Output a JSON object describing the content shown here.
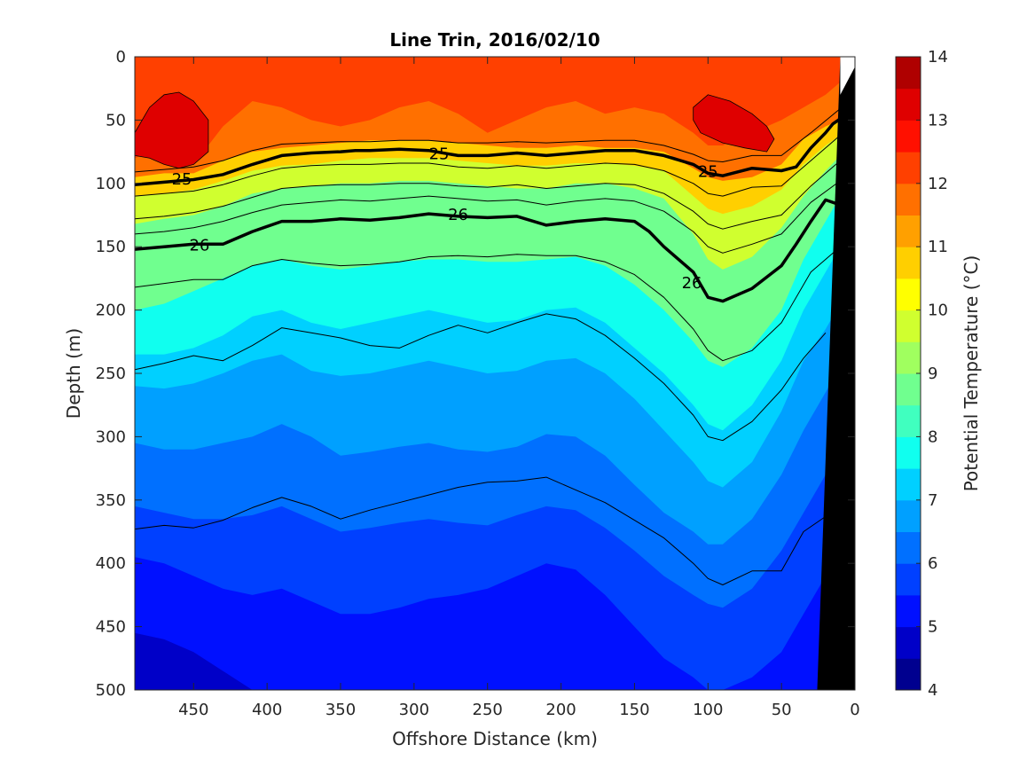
{
  "chart_data": {
    "type": "heatmap",
    "subtype": "filled-contour-section",
    "title": "Line Trin, 2016/02/10",
    "xlabel": "Offshore Distance (km)",
    "ylabel": "Depth (m)",
    "xlim": [
      490,
      0
    ],
    "x_reversed": true,
    "ylim": [
      0,
      500
    ],
    "y_reversed": true,
    "x_ticks": [
      "450",
      "400",
      "350",
      "300",
      "250",
      "200",
      "150",
      "100",
      "50",
      "0"
    ],
    "x_tick_values": [
      450,
      400,
      350,
      300,
      250,
      200,
      150,
      100,
      50,
      0
    ],
    "y_ticks": [
      "0",
      "50",
      "100",
      "150",
      "200",
      "250",
      "300",
      "350",
      "400",
      "450",
      "500"
    ],
    "y_tick_values": [
      0,
      50,
      100,
      150,
      200,
      250,
      300,
      350,
      400,
      450,
      500
    ],
    "colorbar": {
      "label": "Potential Temperature (°C)",
      "range": [
        4,
        14
      ],
      "step": 0.5,
      "ticks": [
        "4",
        "5",
        "6",
        "7",
        "8",
        "9",
        "10",
        "11",
        "12",
        "13",
        "14"
      ],
      "tick_values": [
        4,
        5,
        6,
        7,
        8,
        9,
        10,
        11,
        12,
        13,
        14
      ],
      "colors": [
        "#00008f",
        "#0000c8",
        "#0010ff",
        "#0040ff",
        "#0070ff",
        "#00a0ff",
        "#00d0ff",
        "#10ffef",
        "#40ffbf",
        "#70ff8f",
        "#a0ff5f",
        "#d0ff2f",
        "#ffff00",
        "#ffcf00",
        "#ffa000",
        "#ff7000",
        "#ff4000",
        "#ff1000",
        "#df0000",
        "#af0000"
      ]
    },
    "x_grid": [
      490,
      470,
      450,
      430,
      410,
      390,
      370,
      350,
      330,
      310,
      290,
      270,
      250,
      230,
      210,
      190,
      170,
      150,
      130,
      110,
      100,
      90,
      70,
      50,
      35,
      20,
      10
    ],
    "isotherm_depths": [
      {
        "temp": 12.0,
        "depth": [
          80,
          72,
          85,
          55,
          35,
          40,
          50,
          55,
          50,
          40,
          35,
          45,
          60,
          50,
          40,
          35,
          45,
          40,
          45,
          60,
          70,
          70,
          60,
          50,
          40,
          30,
          20
        ]
      },
      {
        "temp": 11.0,
        "depth": [
          95,
          92,
          92,
          82,
          75,
          72,
          70,
          68,
          66,
          66,
          66,
          68,
          70,
          72,
          72,
          70,
          72,
          72,
          75,
          88,
          95,
          98,
          95,
          85,
          65,
          55,
          50
        ]
      },
      {
        "temp": 10.0,
        "depth": [
          110,
          108,
          105,
          98,
          90,
          86,
          85,
          82,
          80,
          80,
          80,
          82,
          84,
          86,
          86,
          84,
          84,
          86,
          90,
          110,
          120,
          124,
          118,
          105,
          85,
          70,
          62
        ]
      },
      {
        "temp": 9.0,
        "depth": [
          132,
          128,
          125,
          118,
          108,
          104,
          102,
          100,
          100,
          98,
          98,
          100,
          102,
          104,
          104,
          100,
          100,
          104,
          112,
          140,
          160,
          168,
          158,
          135,
          110,
          90,
          78
        ]
      },
      {
        "temp": 8.0,
        "depth": [
          200,
          195,
          185,
          175,
          165,
          160,
          165,
          168,
          165,
          162,
          160,
          160,
          162,
          162,
          160,
          158,
          165,
          180,
          200,
          225,
          240,
          245,
          230,
          200,
          160,
          130,
          110
        ]
      },
      {
        "temp": 7.5,
        "depth": [
          235,
          235,
          230,
          220,
          205,
          200,
          210,
          215,
          210,
          205,
          200,
          205,
          210,
          208,
          200,
          198,
          210,
          230,
          250,
          275,
          290,
          295,
          275,
          240,
          200,
          170,
          150
        ]
      },
      {
        "temp": 7.0,
        "depth": [
          260,
          262,
          258,
          250,
          240,
          235,
          248,
          252,
          250,
          245,
          240,
          245,
          250,
          248,
          240,
          238,
          250,
          270,
          295,
          320,
          335,
          340,
          320,
          280,
          240,
          215,
          195
        ]
      },
      {
        "temp": 6.5,
        "depth": [
          305,
          310,
          310,
          305,
          300,
          290,
          300,
          315,
          312,
          308,
          305,
          310,
          312,
          308,
          298,
          300,
          315,
          338,
          360,
          375,
          385,
          385,
          365,
          330,
          295,
          265,
          245
        ]
      },
      {
        "temp": 6.0,
        "depth": [
          355,
          360,
          365,
          365,
          362,
          355,
          365,
          375,
          372,
          368,
          365,
          368,
          370,
          362,
          355,
          358,
          372,
          390,
          410,
          425,
          432,
          435,
          420,
          390,
          360,
          330,
          310
        ]
      },
      {
        "temp": 5.5,
        "depth": [
          395,
          400,
          410,
          420,
          425,
          420,
          430,
          440,
          440,
          435,
          428,
          425,
          420,
          410,
          400,
          405,
          425,
          450,
          475,
          490,
          500,
          500,
          490,
          470,
          440,
          410,
          390
        ]
      },
      {
        "temp": 5.0,
        "depth": [
          455,
          460,
          470,
          485,
          500,
          510,
          510,
          510,
          510,
          510,
          510,
          510,
          510,
          510,
          510,
          510,
          510,
          510,
          510,
          510,
          510,
          510,
          510,
          510,
          510,
          510,
          510
        ]
      }
    ],
    "warm_cores_13C": [
      {
        "x": [
          490,
          480,
          470,
          460,
          450,
          440,
          440,
          450,
          460,
          470,
          480,
          490
        ],
        "depth": [
          60,
          40,
          30,
          28,
          35,
          50,
          75,
          85,
          88,
          85,
          80,
          78
        ]
      },
      {
        "x": [
          110,
          100,
          85,
          70,
          60,
          55,
          60,
          75,
          90,
          105,
          110
        ],
        "depth": [
          40,
          30,
          35,
          45,
          55,
          65,
          75,
          72,
          68,
          60,
          50
        ]
      }
    ],
    "sigma_contours": [
      {
        "label": "25",
        "bold": true,
        "x": [
          490,
          470,
          450,
          430,
          410,
          390,
          370,
          350,
          340,
          330,
          310,
          290,
          270,
          250,
          230,
          210,
          190,
          170,
          150,
          130,
          110,
          100,
          90,
          70,
          50,
          40,
          30,
          20,
          15,
          10
        ],
        "depth": [
          101,
          99,
          97,
          93,
          85,
          78,
          76,
          75,
          74,
          74,
          73,
          74,
          78,
          78,
          76,
          78,
          76,
          74,
          74,
          78,
          85,
          92,
          94,
          88,
          90,
          87,
          72,
          60,
          53,
          49
        ]
      },
      {
        "label": "26",
        "bold": true,
        "x": [
          490,
          470,
          450,
          430,
          410,
          390,
          370,
          350,
          330,
          310,
          290,
          270,
          250,
          230,
          210,
          190,
          170,
          150,
          140,
          130,
          110,
          100,
          90,
          70,
          50,
          40,
          30,
          20,
          10
        ],
        "depth": [
          152,
          150,
          148,
          148,
          138,
          130,
          130,
          128,
          129,
          127,
          124,
          126,
          127,
          126,
          133,
          130,
          128,
          130,
          138,
          150,
          170,
          190,
          193,
          183,
          165,
          148,
          130,
          113,
          117
        ]
      },
      {
        "label": "",
        "bold": false,
        "x": [
          490,
          470,
          450,
          430,
          410,
          390,
          370,
          350,
          330,
          310,
          290,
          270,
          250,
          230,
          210,
          190,
          170,
          150,
          130,
          110,
          100,
          90,
          70,
          50,
          30,
          10
        ],
        "depth": [
          91,
          89,
          87,
          82,
          74,
          69,
          68,
          67,
          67,
          66,
          66,
          68,
          68,
          67,
          68,
          67,
          66,
          66,
          70,
          77,
          82,
          83,
          78,
          78,
          60,
          41
        ]
      },
      {
        "label": "",
        "bold": false,
        "x": [
          490,
          470,
          450,
          430,
          410,
          390,
          370,
          350,
          330,
          310,
          290,
          270,
          250,
          230,
          210,
          190,
          170,
          150,
          130,
          110,
          100,
          90,
          70,
          50,
          30,
          10
        ],
        "depth": [
          110,
          108,
          106,
          101,
          94,
          88,
          86,
          85,
          85,
          84,
          84,
          87,
          88,
          86,
          88,
          86,
          84,
          85,
          90,
          100,
          108,
          110,
          103,
          102,
          82,
          62
        ]
      },
      {
        "label": "",
        "bold": false,
        "x": [
          490,
          470,
          450,
          430,
          410,
          390,
          370,
          350,
          330,
          310,
          290,
          270,
          250,
          230,
          210,
          190,
          170,
          150,
          130,
          110,
          100,
          90,
          70,
          50,
          30,
          10
        ],
        "depth": [
          128,
          126,
          123,
          118,
          111,
          104,
          102,
          101,
          101,
          100,
          100,
          102,
          103,
          101,
          104,
          102,
          100,
          101,
          108,
          122,
          132,
          136,
          130,
          125,
          102,
          82
        ]
      },
      {
        "label": "",
        "bold": false,
        "x": [
          490,
          470,
          450,
          430,
          410,
          390,
          370,
          350,
          330,
          310,
          290,
          270,
          250,
          230,
          210,
          190,
          170,
          150,
          130,
          110,
          100,
          90,
          70,
          50,
          30,
          10
        ],
        "depth": [
          140,
          138,
          135,
          130,
          123,
          117,
          115,
          113,
          114,
          112,
          110,
          112,
          114,
          113,
          117,
          114,
          112,
          114,
          122,
          138,
          150,
          155,
          148,
          140,
          115,
          98
        ]
      },
      {
        "label": "",
        "bold": false,
        "x": [
          490,
          470,
          450,
          430,
          410,
          390,
          370,
          350,
          330,
          310,
          290,
          270,
          250,
          230,
          210,
          190,
          170,
          150,
          130,
          110,
          100,
          90,
          70,
          50,
          30,
          10
        ],
        "depth": [
          182,
          179,
          176,
          176,
          165,
          160,
          163,
          165,
          164,
          162,
          158,
          157,
          158,
          156,
          157,
          157,
          162,
          172,
          190,
          215,
          232,
          240,
          232,
          210,
          170,
          150
        ]
      },
      {
        "label": "",
        "bold": false,
        "x": [
          490,
          470,
          450,
          430,
          410,
          390,
          370,
          350,
          330,
          310,
          290,
          270,
          250,
          230,
          210,
          190,
          170,
          150,
          130,
          110,
          100,
          90,
          70,
          50,
          35,
          20
        ],
        "depth": [
          247,
          242,
          236,
          240,
          228,
          214,
          218,
          222,
          228,
          230,
          220,
          212,
          218,
          210,
          203,
          207,
          220,
          238,
          258,
          283,
          300,
          303,
          288,
          263,
          238,
          218
        ]
      },
      {
        "label": "",
        "bold": false,
        "x": [
          490,
          470,
          450,
          430,
          410,
          390,
          370,
          350,
          330,
          310,
          290,
          270,
          250,
          230,
          210,
          190,
          170,
          150,
          130,
          110,
          100,
          90,
          70,
          50,
          35,
          20
        ],
        "depth": [
          373,
          370,
          372,
          366,
          356,
          348,
          355,
          365,
          358,
          352,
          346,
          340,
          336,
          335,
          332,
          342,
          352,
          366,
          380,
          400,
          412,
          417,
          406,
          406,
          375,
          363
        ]
      }
    ],
    "contour_labels": [
      {
        "text": "25",
        "x": 458,
        "depth": 96
      },
      {
        "text": "25",
        "x": 283,
        "depth": 76
      },
      {
        "text": "25",
        "x": 100,
        "depth": 90
      },
      {
        "text": "26",
        "x": 446,
        "depth": 148
      },
      {
        "text": "26",
        "x": 270,
        "depth": 124
      },
      {
        "text": "26",
        "x": 111,
        "depth": 178
      }
    ],
    "bathymetry": {
      "x": [
        0,
        0,
        25,
        30,
        40,
        50,
        25
      ],
      "depth": [
        0,
        510,
        510,
        300,
        120,
        15,
        0
      ],
      "note": "none"
    }
  }
}
